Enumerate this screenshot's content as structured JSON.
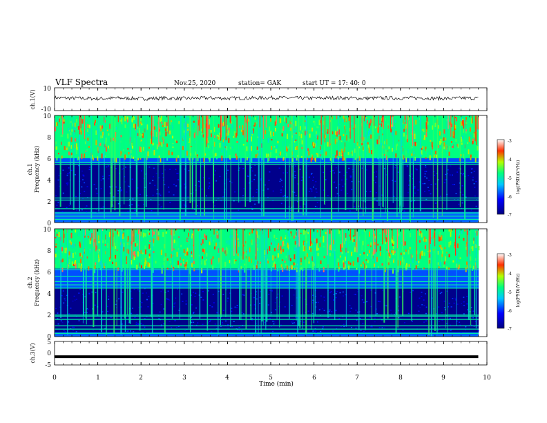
{
  "header": {
    "title": "VLF Spectra",
    "date": "Nov.25, 2020",
    "station": "station= GAK",
    "start": "start  UT  =   17: 40: 0"
  },
  "chart_data": [
    {
      "type": "line",
      "name": "ch1-waveform",
      "ylabel": "ch.1(V)",
      "ylim": [
        -10,
        10
      ],
      "yticks": [
        "10",
        "-10"
      ],
      "x": [
        0,
        0.5,
        1,
        1.5,
        2,
        2.5,
        3,
        3.5,
        4,
        4.5,
        5,
        5.5,
        6,
        6.5,
        7,
        7.5,
        8,
        8.5,
        9,
        9.5,
        9.8
      ],
      "values": [
        1.2,
        0.8,
        0.5,
        1.0,
        0.4,
        0.9,
        0.6,
        1.1,
        0.7,
        0.9,
        1.4,
        1.0,
        0.8,
        1.2,
        0.7,
        1.0,
        0.9,
        1.1,
        0.6,
        0.9,
        0.8
      ]
    },
    {
      "type": "heatmap",
      "name": "ch1-spectrogram",
      "ylabel": "ch.1",
      "ylabel2": "Frequency (kHz)",
      "ylim": [
        0,
        10
      ],
      "yticks": [
        "0",
        "2",
        "4",
        "6",
        "8",
        "10"
      ],
      "colorbar": {
        "label": "log(PSD)(V²/Hz)",
        "ticks": [
          "-3",
          "-4",
          "-5",
          "-6",
          "-7"
        ],
        "range": [
          -7,
          -3
        ]
      },
      "features": {
        "dark_band_khz": [
          1.0,
          5.5
        ],
        "bright_band_khz": [
          6.0,
          10.0
        ],
        "lines_khz": [
          0.3,
          0.6,
          0.9,
          1.3,
          2.1,
          2.3,
          5.4,
          5.6
        ]
      }
    },
    {
      "type": "heatmap",
      "name": "ch2-spectrogram",
      "ylabel": "ch.2",
      "ylabel2": "Frequency (kHz)",
      "ylim": [
        0,
        10
      ],
      "yticks": [
        "0",
        "2",
        "4",
        "6",
        "8",
        "10"
      ],
      "colorbar": {
        "label": "log(PSD)(V²/Hz)",
        "ticks": [
          "-3",
          "-4",
          "-5",
          "-6",
          "-7"
        ],
        "range": [
          -7,
          -3
        ]
      },
      "features": {
        "dark_band_khz": [
          0.4,
          4.5
        ],
        "bright_band_khz": [
          6.3,
          10.0
        ],
        "lines_khz": [
          0.3,
          0.7,
          1.0,
          1.6,
          1.9,
          2.0,
          4.5,
          4.8,
          5.1,
          5.6,
          6.2
        ]
      }
    },
    {
      "type": "line",
      "name": "ch3-waveform",
      "ylabel": "ch.3(V)",
      "ylim": [
        -5,
        5
      ],
      "yticks": [
        "5",
        "0",
        "-5"
      ],
      "x": [
        0,
        9.8
      ],
      "values": [
        -1.5,
        -1.5
      ]
    }
  ],
  "xaxis": {
    "label": "Time (min)",
    "ticks": [
      "0",
      "1",
      "2",
      "3",
      "4",
      "5",
      "6",
      "7",
      "8",
      "9",
      "10"
    ],
    "range": [
      0,
      10
    ]
  }
}
